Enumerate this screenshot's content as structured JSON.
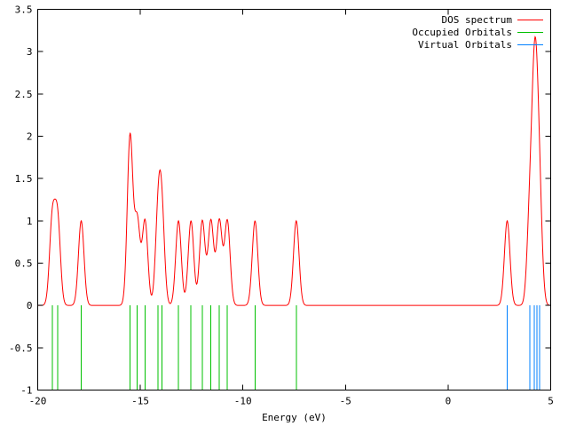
{
  "chart_data": {
    "type": "line",
    "title": "",
    "xlabel": "Energy (eV)",
    "ylabel": "",
    "xlim": [
      -20,
      5
    ],
    "ylim": [
      -1,
      3.5
    ],
    "grid": false,
    "x_tick_values": [
      -20,
      -15,
      -10,
      -5,
      0,
      5
    ],
    "x_tick_labels": [
      "-20",
      "-15",
      "-10",
      "-5",
      "0",
      "5"
    ],
    "y_tick_values": [
      -1,
      -0.5,
      0,
      0.5,
      1,
      1.5,
      2,
      2.5,
      3,
      3.5
    ],
    "y_tick_labels": [
      "-1",
      "-0.5",
      "0",
      "0.5",
      "1",
      "1.5",
      "2",
      "2.5",
      "3",
      "3.5"
    ],
    "legend_position": "top-right-inside",
    "legend": [
      {
        "label": "DOS spectrum",
        "color": "#ff0000",
        "series": "dos_curve"
      },
      {
        "label": "Occupied Orbitals",
        "color": "#00c000",
        "series": "occupied_orbitals"
      },
      {
        "label": "Virtual Orbitals",
        "color": "#0080ff",
        "series": "virtual_orbitals"
      }
    ],
    "axis_color": "#000000",
    "occupied_orbitals_eV": [
      -19.29,
      -19.03,
      -17.88,
      -15.5,
      -15.15,
      -14.77,
      -14.13,
      -13.95,
      -13.14,
      -12.53,
      -11.98,
      -11.56,
      -11.15,
      -10.76,
      -9.41,
      -7.4
    ],
    "virtual_orbitals_eV": [
      2.88,
      3.98,
      4.2,
      4.32,
      4.46
    ],
    "orbital_stick_value_range": [
      -1,
      0
    ],
    "dos_curve": {
      "model": "sum_of_gaussians",
      "sigma_eV": 0.135,
      "sample_step_eV": 0.02,
      "components": [
        [
          -19.29,
          1
        ],
        [
          -19.03,
          1
        ],
        [
          -17.88,
          1
        ],
        [
          -15.5,
          2
        ],
        [
          -15.15,
          1
        ],
        [
          -14.77,
          1
        ],
        [
          -14.13,
          1
        ],
        [
          -13.95,
          1
        ],
        [
          -13.14,
          1
        ],
        [
          -12.53,
          1
        ],
        [
          -11.98,
          1
        ],
        [
          -11.56,
          1
        ],
        [
          -11.15,
          1
        ],
        [
          -10.76,
          1
        ],
        [
          -9.41,
          1
        ],
        [
          -7.4,
          1
        ],
        [
          2.88,
          1
        ],
        [
          3.98,
          1
        ],
        [
          4.2,
          2
        ],
        [
          4.32,
          1
        ],
        [
          4.46,
          1
        ]
      ],
      "peak_heights_observed": [
        [
          -19.16,
          1.36
        ],
        [
          -17.88,
          1.0
        ],
        [
          -15.45,
          2.1
        ],
        [
          -14.77,
          1.0
        ],
        [
          -14.04,
          1.55
        ],
        [
          -13.14,
          1.0
        ],
        [
          -12.53,
          1.0
        ],
        [
          -11.98,
          1.0
        ],
        [
          -11.56,
          1.0
        ],
        [
          -11.15,
          1.0
        ],
        [
          -10.76,
          1.0
        ],
        [
          -9.41,
          1.0
        ],
        [
          -7.4,
          1.0
        ],
        [
          2.88,
          1.0
        ],
        [
          4.24,
          3.18
        ]
      ]
    }
  }
}
